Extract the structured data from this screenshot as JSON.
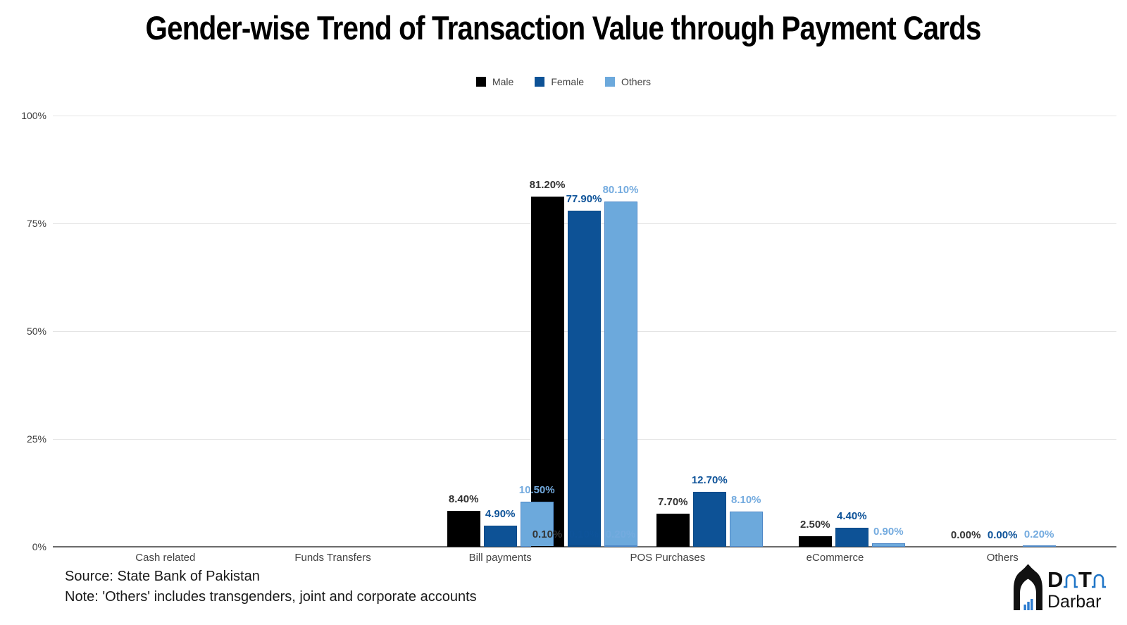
{
  "chart_data": {
    "type": "bar",
    "title": "Gender-wise Trend of Transaction Value through Payment Cards",
    "categories": [
      "Cash related",
      "Funds Transfers",
      "Bill payments",
      "POS Purchases",
      "eCommerce",
      "Others"
    ],
    "series": [
      {
        "name": "Male",
        "color": "#000000",
        "border_color": "#000000",
        "label_color": "#333333",
        "values": [
          81.2,
          8.4,
          0.1,
          7.7,
          2.5,
          0.0
        ],
        "labels": [
          "81.20%",
          "8.40%",
          "0.10%",
          "7.70%",
          "2.50%",
          "0.00%"
        ]
      },
      {
        "name": "Female",
        "color": "#0d5296",
        "border_color": "#0b4a87",
        "label_color": "#0e5399",
        "values": [
          77.9,
          4.9,
          0.1,
          12.7,
          4.4,
          0.0
        ],
        "labels": [
          "77.90%",
          "4.90%",
          "0.10%",
          "12.70%",
          "4.40%",
          "0.00%"
        ]
      },
      {
        "name": "Others",
        "color": "#6ca9dc",
        "border_color": "#4d87c7",
        "label_color": "#74abdf",
        "values": [
          80.1,
          10.5,
          0.2,
          8.1,
          0.9,
          0.2
        ],
        "labels": [
          "80.10%",
          "10.50%",
          "0.20%",
          "8.10%",
          "0.90%",
          "0.20%"
        ]
      }
    ],
    "y_ticks": [
      {
        "value": 0,
        "label": "0%"
      },
      {
        "value": 25,
        "label": "25%"
      },
      {
        "value": 50,
        "label": "50%"
      },
      {
        "value": 75,
        "label": "75%"
      },
      {
        "value": 100,
        "label": "100%"
      }
    ],
    "ylim": [
      0,
      100
    ],
    "grid": true,
    "legend_position": "top",
    "axis_color": "#6b6b6b",
    "grid_color": "#e4e4e4",
    "tick_label_color": "#3c3c3c"
  },
  "footer": {
    "source": "Source: State Bank of Pakistan",
    "note": "Note: 'Others' includes transgenders, joint and corporate accounts"
  },
  "logo": {
    "brand_top_d": "D",
    "brand_top_t": "T",
    "brand_bottom": "Darbar",
    "accent_blue": "#2176c7",
    "arch_black": "#111111"
  }
}
